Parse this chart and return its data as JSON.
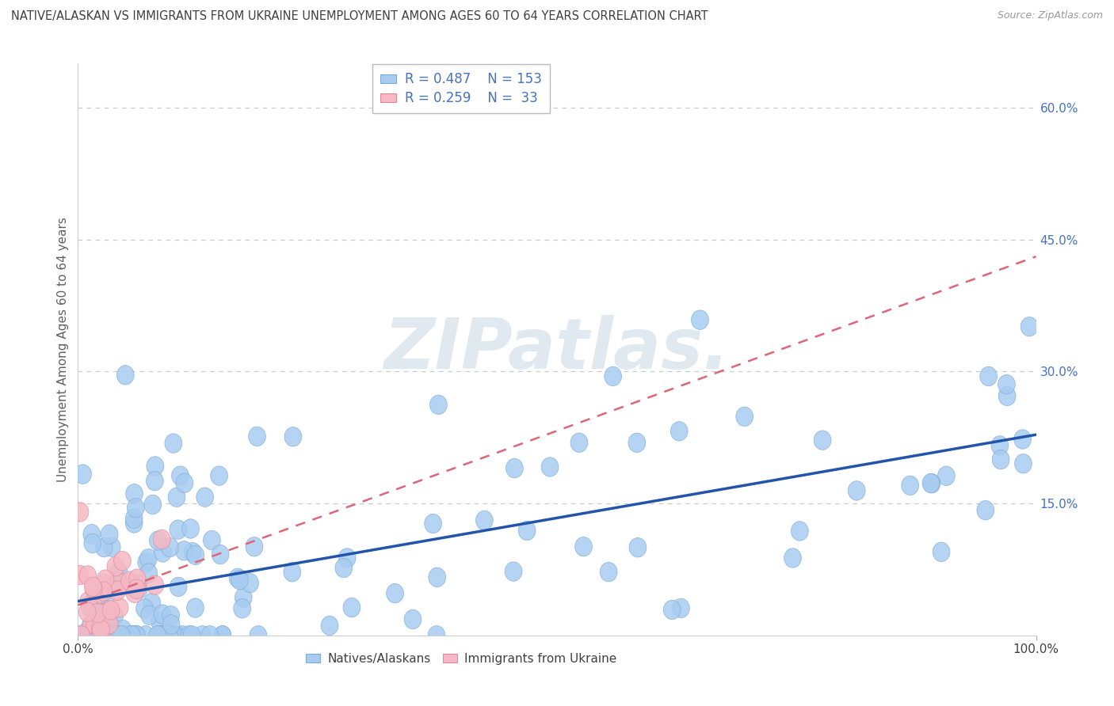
{
  "title": "NATIVE/ALASKAN VS IMMIGRANTS FROM UKRAINE UNEMPLOYMENT AMONG AGES 60 TO 64 YEARS CORRELATION CHART",
  "source": "Source: ZipAtlas.com",
  "ylabel": "Unemployment Among Ages 60 to 64 years",
  "xlim": [
    0,
    1.0
  ],
  "ylim": [
    0,
    0.65
  ],
  "ytick_values": [
    0.15,
    0.3,
    0.45,
    0.6
  ],
  "watermark_text": "ZIPatlas.",
  "legend_blue_R": "0.487",
  "legend_blue_N": "153",
  "legend_pink_R": "0.259",
  "legend_pink_N": "33",
  "blue_color": "#A8CCF0",
  "blue_edge_color": "#7BAAD4",
  "pink_color": "#F5B8C4",
  "pink_edge_color": "#E08898",
  "blue_line_color": "#2255AA",
  "pink_line_color": "#DD6677",
  "background_color": "#ffffff",
  "grid_color": "#c8c8c8",
  "title_color": "#404040",
  "axis_label_color": "#606060",
  "legend_text_color": "#4472C4",
  "tick_color": "#404040",
  "watermark_color": "#e0e8f0",
  "seed": 42
}
